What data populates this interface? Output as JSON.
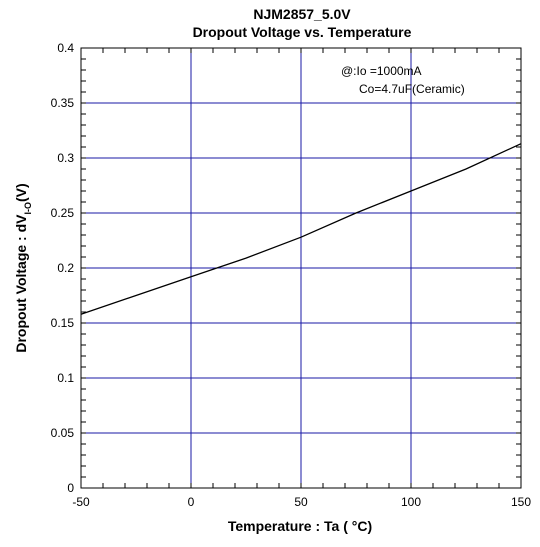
{
  "chart_data": {
    "type": "line",
    "title": "NJM2857_5.0V",
    "subtitle": "Dropout Voltage vs. Temperature",
    "xlabel": "Temperature : Ta ( °C)",
    "ylabel": {
      "main": "Dropout Voltage : dV",
      "subscript": "I-O",
      "suffix": "(V)"
    },
    "annotation": [
      "@:Io =1000mA",
      "Co=4.7uF(Ceramic)"
    ],
    "xlim": [
      -50,
      150
    ],
    "ylim": [
      0,
      0.4
    ],
    "xticks": [
      "-50",
      "0",
      "50",
      "100",
      "150"
    ],
    "yticks": [
      "0",
      "0.05",
      "0.1",
      "0.15",
      "0.2",
      "0.25",
      "0.3",
      "0.35",
      "0.4"
    ],
    "grid": true,
    "series": [
      {
        "x": [
          -50,
          -25,
          0,
          25,
          50,
          75,
          100,
          125,
          150
        ],
        "y": [
          0.158,
          0.175,
          0.192,
          0.209,
          0.228,
          0.25,
          0.27,
          0.29,
          0.313
        ]
      }
    ],
    "colors": {
      "grid": "#1a1aa6",
      "line": "#000000",
      "frame": "#000000"
    }
  }
}
